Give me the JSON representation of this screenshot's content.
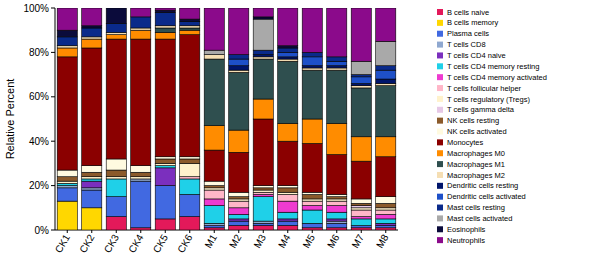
{
  "chart_data": {
    "type": "bar",
    "stacked": true,
    "legend": "right",
    "y_label": "Relative Percent",
    "categories": [
      "CK1",
      "CK2",
      "CK3",
      "CK4",
      "CK5",
      "CK6",
      "M1",
      "M2",
      "M3",
      "M4",
      "M5",
      "M6",
      "M7",
      "M8"
    ],
    "ylim": [
      0,
      100
    ],
    "yticks": [
      {
        "value": 0,
        "label": "0%"
      },
      {
        "value": 20,
        "label": "20%"
      },
      {
        "value": 40,
        "label": "40%"
      },
      {
        "value": 60,
        "label": "60%"
      },
      {
        "value": 80,
        "label": "80%"
      },
      {
        "value": 100,
        "label": "100%"
      }
    ],
    "series": [
      {
        "name": "B cells naive",
        "color": "#e3195a",
        "values": [
          0,
          0,
          6,
          1,
          5,
          6,
          1,
          2,
          2,
          2,
          1,
          1,
          1,
          1
        ]
      },
      {
        "name": "B cells memory",
        "color": "#ffd700",
        "values": [
          13,
          10,
          0,
          0,
          0,
          0,
          0,
          0,
          0,
          0,
          0,
          0,
          0,
          0
        ]
      },
      {
        "name": "Plasma cells",
        "color": "#4169e1",
        "values": [
          6,
          8,
          9,
          21,
          15,
          10,
          1,
          2,
          1,
          2,
          2,
          2,
          1,
          1
        ]
      },
      {
        "name": "T cells CD8",
        "color": "#8fa8d0",
        "values": [
          1,
          1,
          0,
          1,
          0,
          0,
          1,
          0,
          1,
          0,
          0,
          1,
          0,
          0
        ]
      },
      {
        "name": "T cells CD4 naive",
        "color": "#7b2fbe",
        "values": [
          0,
          3,
          0,
          0,
          8,
          0,
          0,
          1,
          0,
          1,
          0,
          1,
          0,
          1
        ]
      },
      {
        "name": "T cells CD4 memory resting",
        "color": "#1fd0e8",
        "values": [
          1,
          1,
          8,
          0,
          1,
          7,
          8,
          2,
          11,
          3,
          6,
          3,
          3,
          2
        ]
      },
      {
        "name": "T cells CD4 memory activated",
        "color": "#ee3bd0",
        "values": [
          0,
          0,
          0,
          0,
          0,
          0,
          3,
          3,
          1,
          5,
          2,
          3,
          1,
          2
        ]
      },
      {
        "name": "T cells follicular helper",
        "color": "#ffb6c8",
        "values": [
          0,
          0,
          0,
          0,
          0,
          1,
          4,
          3,
          1,
          3,
          2,
          2,
          3,
          2
        ]
      },
      {
        "name": "T cells regulatory (Tregs)",
        "color": "#fff2cc",
        "values": [
          1,
          1,
          1,
          1,
          1,
          6,
          1,
          1,
          1,
          1,
          1,
          1,
          1,
          1
        ]
      },
      {
        "name": "T cells gamma delta",
        "color": "#e6c8e6",
        "values": [
          0,
          0,
          0,
          0,
          0,
          0,
          0,
          0,
          0,
          0,
          0,
          0,
          1,
          0
        ]
      },
      {
        "name": "NK cells resting",
        "color": "#8b5a2b",
        "values": [
          2,
          2,
          3,
          2,
          2,
          2,
          1,
          1,
          1,
          2,
          2,
          1,
          1,
          2
        ]
      },
      {
        "name": "NK cells activated",
        "color": "#fffae0",
        "values": [
          3,
          3,
          5,
          3,
          1,
          1,
          2,
          2,
          1,
          1,
          1,
          1,
          2,
          3
        ]
      },
      {
        "name": "Monocytes",
        "color": "#8b0000",
        "values": [
          51,
          53,
          54,
          57,
          53,
          55,
          14,
          18,
          30,
          20,
          22,
          18,
          17,
          18
        ]
      },
      {
        "name": "Macrophages M0",
        "color": "#ff8c00",
        "values": [
          4,
          4,
          2,
          4,
          3,
          2,
          11,
          10,
          9,
          8,
          11,
          14,
          11,
          9
        ]
      },
      {
        "name": "Macrophages M1",
        "color": "#2f4f4f",
        "values": [
          0,
          0,
          0,
          0,
          2,
          1,
          30,
          26,
          18,
          28,
          22,
          24,
          22,
          23
        ]
      },
      {
        "name": "Macrophages M2",
        "color": "#f5deb3",
        "values": [
          1,
          1,
          1,
          1,
          1,
          1,
          2,
          1,
          1,
          1,
          1,
          1,
          1,
          1
        ]
      },
      {
        "name": "Dendritic cells resting",
        "color": "#00156b",
        "values": [
          0,
          0,
          0,
          0,
          0,
          0,
          0,
          2,
          1,
          1,
          1,
          1,
          1,
          2
        ]
      },
      {
        "name": "Dendritic cells activated",
        "color": "#1e50c8",
        "values": [
          0,
          0,
          0,
          0,
          0,
          0,
          0,
          3,
          0,
          2,
          4,
          2,
          3,
          4
        ]
      },
      {
        "name": "Mast cells resting",
        "color": "#0a2a8a",
        "values": [
          4,
          4,
          4,
          5,
          6,
          2,
          0,
          2,
          2,
          2,
          2,
          2,
          1,
          2
        ]
      },
      {
        "name": "Mast cells activated",
        "color": "#a9a9a9",
        "values": [
          0,
          0,
          0,
          0,
          0,
          0,
          2,
          0,
          14,
          0,
          0,
          0,
          6,
          11
        ]
      },
      {
        "name": "Eosinophils",
        "color": "#0b0b3b",
        "values": [
          3,
          1,
          7,
          0,
          1,
          1,
          0,
          0,
          1,
          1,
          0,
          0,
          0,
          0
        ]
      },
      {
        "name": "Neutrophils",
        "color": "#8b0a8b",
        "values": [
          10,
          8,
          0,
          4,
          1,
          5,
          19,
          21,
          4,
          17,
          20,
          22,
          24,
          15
        ]
      }
    ]
  }
}
